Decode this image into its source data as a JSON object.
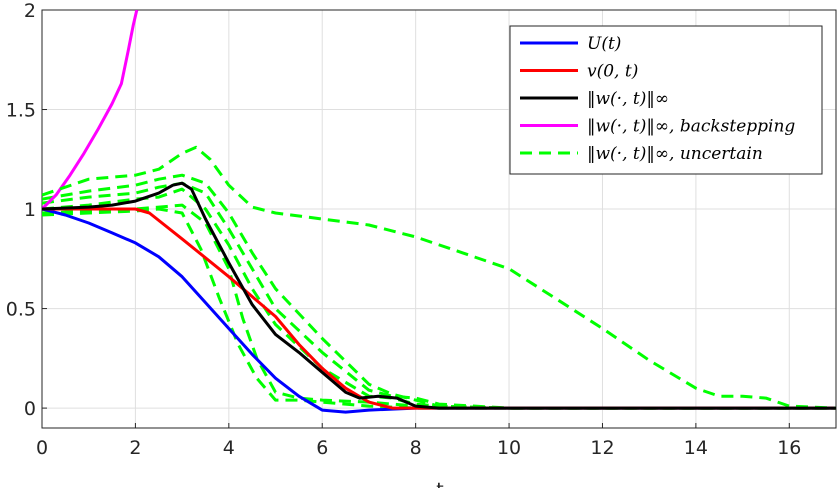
{
  "chart_data": {
    "type": "line",
    "title": "",
    "xlabel": "t",
    "ylabel": "",
    "xlim": [
      0,
      17
    ],
    "ylim": [
      -0.1,
      2
    ],
    "xticks": [
      "0",
      "2",
      "4",
      "6",
      "8",
      "10",
      "12",
      "14",
      "16"
    ],
    "yticks": [
      "0",
      "0.5",
      "1",
      "1.5",
      "2"
    ],
    "grid": true,
    "legend_position": "top-right",
    "series": [
      {
        "name": "U(t)",
        "color": "#0000ff",
        "style": "solid",
        "x": [
          0,
          0.5,
          1,
          1.5,
          2,
          2.5,
          3,
          3.5,
          4,
          4.5,
          5,
          5.5,
          6,
          6.5,
          7,
          8,
          10,
          17
        ],
        "y": [
          1.0,
          0.97,
          0.93,
          0.88,
          0.83,
          0.76,
          0.66,
          0.53,
          0.4,
          0.27,
          0.15,
          0.06,
          -0.01,
          -0.02,
          -0.01,
          0,
          0,
          0
        ]
      },
      {
        "name": "v(0,t)",
        "color": "#ff0000",
        "style": "solid",
        "x": [
          0,
          1,
          2,
          2.3,
          3,
          4,
          5,
          5.5,
          6,
          6.5,
          7,
          7.5,
          8,
          10,
          17
        ],
        "y": [
          1.0,
          1.0,
          1.0,
          0.98,
          0.85,
          0.66,
          0.46,
          0.32,
          0.2,
          0.1,
          0.03,
          0.0,
          0,
          0,
          0
        ]
      },
      {
        "name": "‖w(·,t)‖∞",
        "color": "#000000",
        "style": "solid",
        "x": [
          0,
          1,
          1.5,
          2,
          2.5,
          2.8,
          3,
          3.2,
          3.5,
          4,
          4.5,
          5,
          5.5,
          6,
          6.5,
          6.8,
          7.2,
          7.6,
          8,
          8.5,
          10,
          17
        ],
        "y": [
          1.0,
          1.01,
          1.02,
          1.04,
          1.08,
          1.12,
          1.13,
          1.1,
          0.95,
          0.73,
          0.52,
          0.37,
          0.28,
          0.18,
          0.08,
          0.05,
          0.06,
          0.05,
          0.01,
          0,
          0,
          0
        ]
      },
      {
        "name": "‖w(·,t)‖∞, backstepping",
        "color": "#ff00ff",
        "style": "solid",
        "x": [
          0,
          0.3,
          0.6,
          0.9,
          1.2,
          1.5,
          1.7,
          1.85,
          1.95,
          2.03
        ],
        "y": [
          1.0,
          1.07,
          1.17,
          1.28,
          1.4,
          1.53,
          1.63,
          1.8,
          1.92,
          2.0
        ]
      },
      {
        "name": "‖w(·,t)‖∞, uncertain",
        "color": "#00ff00",
        "style": "dashed",
        "x": [
          0,
          1,
          2,
          2.5,
          3,
          3.3,
          3.6,
          4,
          4.5,
          5,
          6,
          7,
          8,
          9,
          10,
          11,
          12,
          13,
          14,
          14.5,
          15,
          15.5,
          16,
          17
        ],
        "y": [
          1.07,
          1.15,
          1.17,
          1.2,
          1.28,
          1.31,
          1.25,
          1.12,
          1.01,
          0.98,
          0.95,
          0.92,
          0.86,
          0.78,
          0.7,
          0.55,
          0.4,
          0.24,
          0.1,
          0.06,
          0.06,
          0.05,
          0.01,
          0.0
        ]
      }
    ],
    "uncertain_extra_curves": [
      {
        "x": [
          0,
          1,
          2,
          2.5,
          3,
          3.5,
          4,
          4.5,
          5,
          6,
          7,
          7.5,
          8,
          8.5,
          10,
          17
        ],
        "y": [
          1.05,
          1.09,
          1.12,
          1.15,
          1.17,
          1.13,
          0.98,
          0.78,
          0.6,
          0.35,
          0.12,
          0.07,
          0.04,
          0.01,
          0,
          0
        ]
      },
      {
        "x": [
          0,
          1,
          2,
          2.5,
          3,
          3.5,
          4,
          4.5,
          5,
          6,
          7,
          7.5,
          8,
          8.5,
          10,
          17
        ],
        "y": [
          1.03,
          1.06,
          1.08,
          1.11,
          1.13,
          1.08,
          0.9,
          0.7,
          0.5,
          0.28,
          0.09,
          0.06,
          0.05,
          0.02,
          0,
          0
        ]
      },
      {
        "x": [
          0,
          1,
          2,
          2.5,
          3,
          3.5,
          4,
          4.5,
          5,
          6,
          7,
          7.5,
          8,
          8.5,
          10,
          17
        ],
        "y": [
          1.0,
          1.02,
          1.05,
          1.06,
          1.1,
          1.0,
          0.82,
          0.6,
          0.42,
          0.2,
          0.06,
          0.05,
          0.02,
          0.01,
          0,
          0
        ]
      },
      {
        "x": [
          0,
          1,
          2,
          2.5,
          3,
          3.5,
          4,
          4.3,
          4.6,
          5,
          5.5,
          6,
          7,
          8,
          10,
          17
        ],
        "y": [
          0.98,
          0.99,
          1.0,
          1.01,
          1.02,
          0.93,
          0.7,
          0.45,
          0.25,
          0.08,
          0.05,
          0.04,
          0.03,
          0.01,
          0,
          0
        ]
      },
      {
        "x": [
          0,
          1,
          2,
          2.5,
          3,
          3.4,
          3.8,
          4.2,
          4.6,
          5,
          5.5,
          6,
          7,
          8,
          10,
          17
        ],
        "y": [
          0.97,
          0.98,
          0.99,
          1.0,
          0.98,
          0.8,
          0.55,
          0.32,
          0.15,
          0.04,
          0.04,
          0.03,
          0.01,
          0.0,
          0,
          0
        ]
      }
    ]
  },
  "legend": {
    "items": [
      {
        "label": "U(t)",
        "color": "#0000ff",
        "style": "solid"
      },
      {
        "label": "v(0, t)",
        "color": "#ff0000",
        "style": "solid"
      },
      {
        "label": "‖w(·, t)‖∞",
        "color": "#000000",
        "style": "solid"
      },
      {
        "label": "‖w(·, t)‖∞, backstepping",
        "color": "#ff00ff",
        "style": "solid"
      },
      {
        "label": "‖w(·, t)‖∞, uncertain",
        "color": "#00ff00",
        "style": "dashed"
      }
    ]
  }
}
